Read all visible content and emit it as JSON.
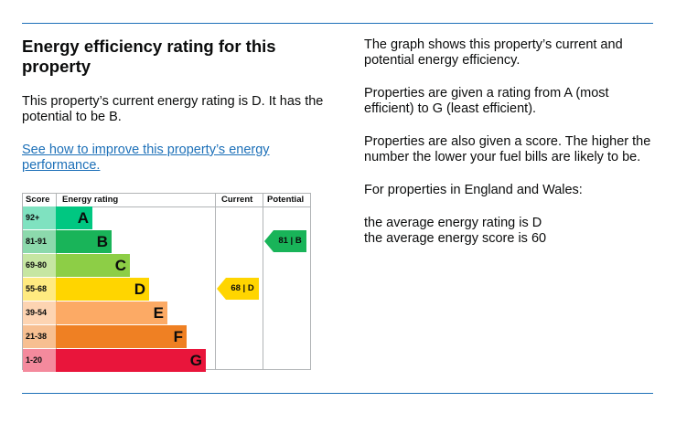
{
  "heading": "Energy efficiency rating for this property",
  "current_text": "This property’s current energy rating is D. It has the potential to be B.",
  "improve_link": "See how to improve this property’s energy performance.",
  "info": {
    "p1": "The graph shows this property’s current and potential energy efficiency.",
    "p2": "Properties are given a rating from A (most efficient) to G (least efficient).",
    "p3": "Properties are also given a score. The higher the number the lower your fuel bills are likely to be.",
    "p4": "For properties in England and Wales:",
    "avg_rating": "the average energy rating is D",
    "avg_score": "the average energy score is 60"
  },
  "chart_data": {
    "type": "table",
    "headers": {
      "score": "Score",
      "rating": "Energy rating",
      "current": "Current",
      "potential": "Potential"
    },
    "bands": [
      {
        "score": "92+",
        "letter": "A",
        "color": "#00c781"
      },
      {
        "score": "81-91",
        "letter": "B",
        "color": "#19b459"
      },
      {
        "score": "69-80",
        "letter": "C",
        "color": "#8dce46"
      },
      {
        "score": "55-68",
        "letter": "D",
        "color": "#ffd500"
      },
      {
        "score": "39-54",
        "letter": "E",
        "color": "#fcaa65"
      },
      {
        "score": "21-38",
        "letter": "F",
        "color": "#ef8023"
      },
      {
        "score": "1-20",
        "letter": "G",
        "color": "#e9153b"
      }
    ],
    "current": {
      "value": 68,
      "letter": "D",
      "label": "68 | D",
      "color": "#ffd500"
    },
    "potential": {
      "value": 81,
      "letter": "B",
      "label": "81 | B",
      "color": "#19b459"
    }
  }
}
